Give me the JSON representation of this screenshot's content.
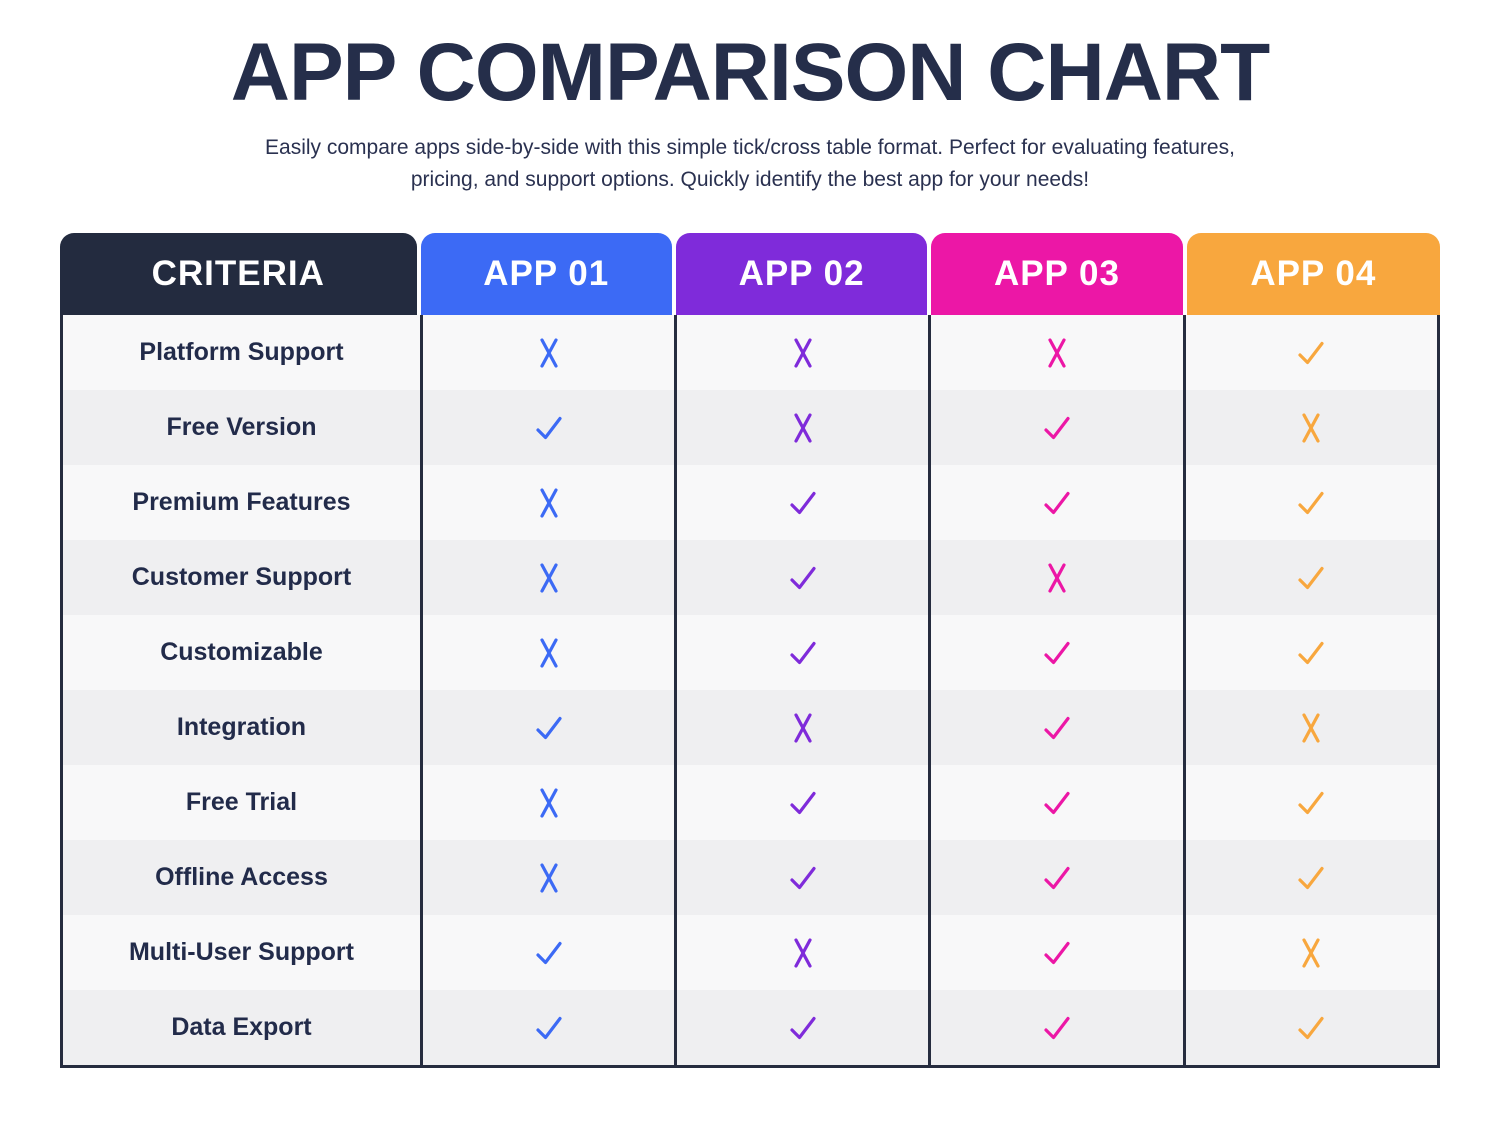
{
  "header": {
    "title": "APP COMPARISON CHART",
    "subtitle_line1": "Easily compare apps side-by-side with this simple tick/cross table format. Perfect for evaluating features,",
    "subtitle_line2": "pricing, and support options. Quickly identify the best app for your needs!"
  },
  "table": {
    "criteria_header": "CRITERIA",
    "criteria_header_color": "#232B3F",
    "app_columns": [
      {
        "label": "APP 01",
        "color": "#3C6AF5"
      },
      {
        "label": "APP 02",
        "color": "#7F2BDA"
      },
      {
        "label": "APP 03",
        "color": "#EC17A6"
      },
      {
        "label": "APP 04",
        "color": "#F8A73E"
      }
    ]
  },
  "chart_data": {
    "type": "table",
    "title": "APP COMPARISON CHART",
    "columns": [
      "CRITERIA",
      "APP 01",
      "APP 02",
      "APP 03",
      "APP 04"
    ],
    "rows": [
      [
        "Platform Support",
        "cross",
        "cross",
        "cross",
        "check"
      ],
      [
        "Free Version",
        "check",
        "cross",
        "check",
        "cross"
      ],
      [
        "Premium Features",
        "cross",
        "check",
        "check",
        "check"
      ],
      [
        "Customer Support",
        "cross",
        "check",
        "cross",
        "check"
      ],
      [
        "Customizable",
        "cross",
        "check",
        "check",
        "check"
      ],
      [
        "Integration",
        "check",
        "cross",
        "check",
        "cross"
      ],
      [
        "Free Trial",
        "cross",
        "check",
        "check",
        "check"
      ],
      [
        "Offline Access",
        "cross",
        "check",
        "check",
        "check"
      ],
      [
        "Multi-User Support",
        "check",
        "cross",
        "check",
        "cross"
      ],
      [
        "Data Export",
        "check",
        "check",
        "check",
        "check"
      ]
    ]
  },
  "colors": {
    "title_text": "#252E4A",
    "subtitle_text": "#2A3150",
    "table_border": "#262C3F",
    "row_light": "#F8F8F9",
    "row_dark": "#EFEFF1",
    "criteria_text": "#222B4A"
  }
}
